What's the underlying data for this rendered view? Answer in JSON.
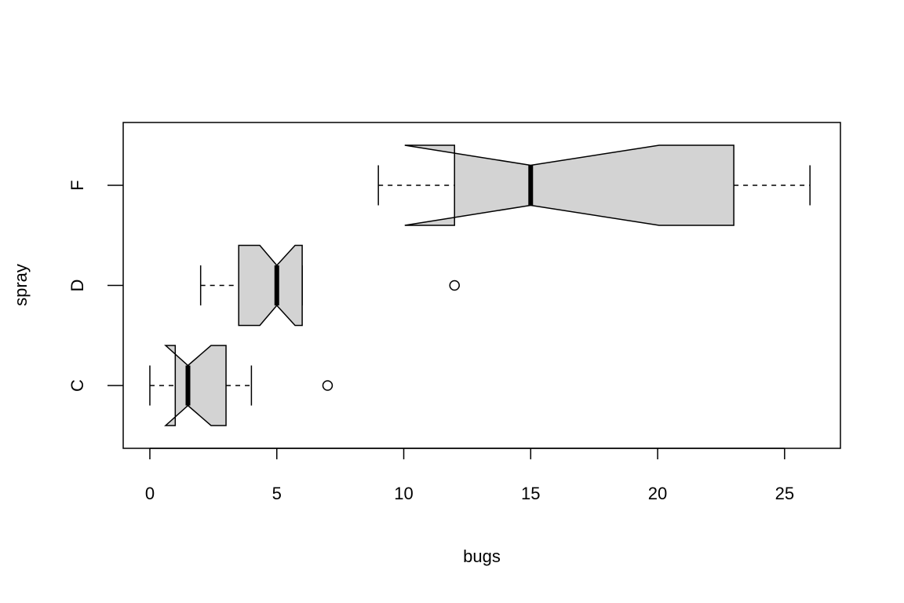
{
  "chart_data": {
    "type": "boxplot",
    "orientation": "horizontal",
    "notch": true,
    "x_label": "bugs",
    "y_label": "spray",
    "categories": [
      "C",
      "D",
      "F"
    ],
    "color": "#d3d3d3",
    "xlim": [
      -1.05,
      27.2
    ],
    "xticks": [
      0,
      5,
      10,
      15,
      20,
      25
    ],
    "boxes": [
      {
        "whisker_low": 0,
        "q1": 1,
        "median": 1.5,
        "q3": 3,
        "whisker_high": 4,
        "notch_low": 0.62,
        "notch_high": 2.41,
        "outliers": [
          7
        ]
      },
      {
        "whisker_low": 2,
        "q1": 3.5,
        "median": 5,
        "q3": 6,
        "whisker_high": 6,
        "notch_low": 4.33,
        "notch_high": 5.72,
        "outliers": [
          12
        ]
      },
      {
        "whisker_low": 9,
        "q1": 12,
        "median": 15,
        "q3": 23,
        "whisker_high": 26,
        "notch_low": 10.04,
        "notch_high": 20.06,
        "outliers": []
      }
    ]
  }
}
